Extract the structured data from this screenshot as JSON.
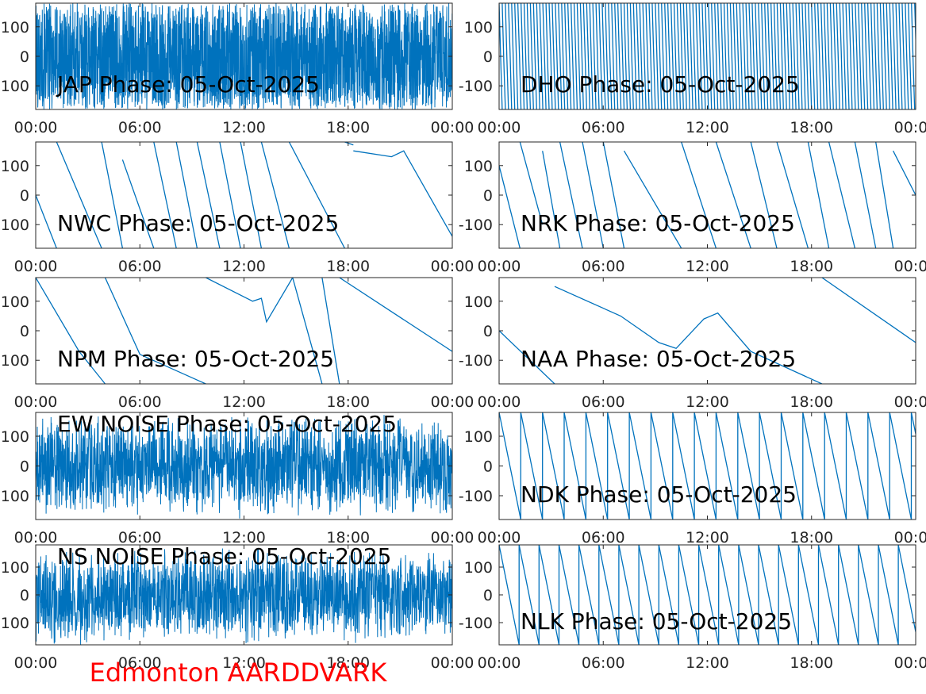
{
  "figure": {
    "footer": "Edmonton AARDDVARK",
    "footer_color": "#ff0000",
    "line_color": "#0072bd"
  },
  "chart_data": [
    {
      "type": "line",
      "title": "JAP Phase: 05-Oct-2025",
      "xticks": [
        "00:00",
        "06:00",
        "12:00",
        "18:00",
        "00:00"
      ],
      "yticks": [
        "100",
        "0",
        "-100"
      ],
      "xlim": [
        0,
        24
      ],
      "ylim": [
        -180,
        180
      ],
      "pattern": "noise-dense"
    },
    {
      "type": "line",
      "title": "DHO Phase: 05-Oct-2025",
      "xticks": [
        "00:00",
        "06:00",
        "12:00",
        "18:00",
        "00:00"
      ],
      "yticks": [
        "100",
        "0",
        "-100"
      ],
      "xlim": [
        0,
        24
      ],
      "ylim": [
        -180,
        180
      ],
      "pattern": "fast-wrap"
    },
    {
      "type": "line",
      "title": "NWC Phase: 05-Oct-2025",
      "xticks": [
        "00:00",
        "06:00",
        "12:00",
        "18:00",
        "00:00"
      ],
      "yticks": [
        "100",
        "0",
        "-100"
      ],
      "xlim": [
        0,
        24
      ],
      "ylim": [
        -180,
        180
      ],
      "pattern": "segments",
      "segments": [
        [
          [
            0,
            0
          ],
          [
            1.2,
            -180
          ]
        ],
        [
          [
            1.2,
            180
          ],
          [
            3.8,
            -180
          ]
        ],
        [
          [
            3.8,
            180
          ],
          [
            5.0,
            -180
          ]
        ],
        [
          [
            5.0,
            120
          ],
          [
            6.8,
            -180
          ]
        ],
        [
          [
            6.8,
            180
          ],
          [
            8.1,
            -180
          ]
        ],
        [
          [
            8.1,
            180
          ],
          [
            9.3,
            -180
          ]
        ],
        [
          [
            9.3,
            180
          ],
          [
            10.6,
            -180
          ]
        ],
        [
          [
            10.6,
            180
          ],
          [
            11.8,
            -180
          ]
        ],
        [
          [
            11.8,
            180
          ],
          [
            13.0,
            -180
          ]
        ],
        [
          [
            13.0,
            180
          ],
          [
            14.6,
            -180
          ]
        ],
        [
          [
            14.6,
            180
          ],
          [
            17.8,
            -180
          ]
        ],
        [
          [
            17.8,
            180
          ],
          [
            18.3,
            170
          ]
        ],
        [
          [
            18.3,
            150
          ],
          [
            20.5,
            130
          ],
          [
            21.2,
            150
          ],
          [
            24,
            -140
          ]
        ]
      ]
    },
    {
      "type": "line",
      "title": "NRK Phase: 05-Oct-2025",
      "xticks": [
        "00:00",
        "06:00",
        "12:00",
        "18:00",
        "00:00"
      ],
      "yticks": [
        "100",
        "0",
        "-100"
      ],
      "xlim": [
        0,
        24
      ],
      "ylim": [
        -180,
        180
      ],
      "pattern": "segments",
      "segments": [
        [
          [
            0,
            100
          ],
          [
            1.2,
            -180
          ]
        ],
        [
          [
            1.2,
            180
          ],
          [
            2.5,
            -100
          ]
        ],
        [
          [
            2.5,
            150
          ],
          [
            3.5,
            -180
          ]
        ],
        [
          [
            3.5,
            180
          ],
          [
            4.8,
            -180
          ]
        ],
        [
          [
            4.8,
            180
          ],
          [
            6.0,
            -180
          ]
        ],
        [
          [
            6.0,
            180
          ],
          [
            7.2,
            -180
          ]
        ],
        [
          [
            7.2,
            150
          ],
          [
            10.5,
            -180
          ]
        ],
        [
          [
            10.5,
            180
          ],
          [
            12.5,
            -180
          ]
        ],
        [
          [
            12.5,
            180
          ],
          [
            14.5,
            -180
          ]
        ],
        [
          [
            14.5,
            180
          ],
          [
            16.0,
            -180
          ]
        ],
        [
          [
            16.0,
            180
          ],
          [
            17.8,
            -180
          ]
        ],
        [
          [
            17.8,
            180
          ],
          [
            19.0,
            -180
          ]
        ],
        [
          [
            19.0,
            180
          ],
          [
            20.5,
            -180
          ]
        ],
        [
          [
            20.5,
            180
          ],
          [
            21.7,
            -180
          ]
        ],
        [
          [
            21.7,
            180
          ],
          [
            22.7,
            -180
          ]
        ],
        [
          [
            22.7,
            150
          ],
          [
            24,
            0
          ]
        ]
      ]
    },
    {
      "type": "line",
      "title": "NPM Phase: 05-Oct-2025",
      "xticks": [
        "00:00",
        "06:00",
        "12:00",
        "18:00",
        "00:00"
      ],
      "yticks": [
        "100",
        "0",
        "-100"
      ],
      "xlim": [
        0,
        24
      ],
      "ylim": [
        -180,
        180
      ],
      "pattern": "segments",
      "segments": [
        [
          [
            0,
            180
          ],
          [
            2.5,
            -70
          ],
          [
            4.0,
            -180
          ]
        ],
        [
          [
            4.0,
            180
          ],
          [
            6.0,
            -80
          ],
          [
            9.8,
            -180
          ]
        ],
        [
          [
            9.8,
            180
          ],
          [
            12.5,
            100
          ],
          [
            13.0,
            110
          ],
          [
            13.3,
            30
          ],
          [
            14.8,
            180
          ]
        ],
        [
          [
            14.8,
            180
          ],
          [
            16.5,
            -180
          ]
        ],
        [
          [
            16.5,
            180
          ],
          [
            17.5,
            -180
          ]
        ],
        [
          [
            17.5,
            180
          ],
          [
            24,
            -70
          ]
        ]
      ]
    },
    {
      "type": "line",
      "title": "NAA Phase: 05-Oct-2025",
      "xticks": [
        "00:00",
        "06:00",
        "12:00",
        "18:00",
        "00:00"
      ],
      "yticks": [
        "100",
        "0",
        "-100"
      ],
      "xlim": [
        0,
        24
      ],
      "ylim": [
        -180,
        180
      ],
      "pattern": "segments",
      "segments": [
        [
          [
            0,
            0
          ],
          [
            3.2,
            -180
          ]
        ],
        [
          [
            3.2,
            150
          ],
          [
            7.0,
            50
          ],
          [
            9.2,
            -40
          ],
          [
            10.2,
            -60
          ],
          [
            11.8,
            40
          ],
          [
            12.6,
            60
          ],
          [
            14.5,
            -70
          ],
          [
            18.6,
            -180
          ]
        ],
        [
          [
            18.6,
            180
          ],
          [
            24,
            -40
          ]
        ]
      ]
    },
    {
      "type": "line",
      "title": "EW NOISE Phase: 05-Oct-2025",
      "xticks": [
        "00:00",
        "06:00",
        "12:00",
        "18:00",
        "00:00"
      ],
      "yticks": [
        "100",
        "0",
        "-100"
      ],
      "xlim": [
        0,
        24
      ],
      "ylim": [
        -180,
        180
      ],
      "pattern": "noise-wide"
    },
    {
      "type": "line",
      "title": "NDK Phase: 05-Oct-2025",
      "xticks": [
        "00:00",
        "06:00",
        "12:00",
        "18:00",
        "00:00"
      ],
      "yticks": [
        "100",
        "0",
        "-100"
      ],
      "xlim": [
        0,
        24
      ],
      "ylim": [
        -180,
        180
      ],
      "pattern": "wrap",
      "period": 1.25,
      "start": 0
    },
    {
      "type": "line",
      "title": "NS NOISE Phase: 05-Oct-2025",
      "xticks": [
        "00:00",
        "06:00",
        "12:00",
        "18:00",
        "00:00"
      ],
      "yticks": [
        "100",
        "0",
        "-100"
      ],
      "xlim": [
        0,
        24
      ],
      "ylim": [
        -180,
        180
      ],
      "pattern": "noise-wide"
    },
    {
      "type": "line",
      "title": "NLK Phase: 05-Oct-2025",
      "xticks": [
        "00:00",
        "06:00",
        "12:00",
        "18:00",
        "00:00"
      ],
      "yticks": [
        "100",
        "0",
        "-100"
      ],
      "xlim": [
        0,
        24
      ],
      "ylim": [
        -180,
        180
      ],
      "pattern": "wrap",
      "period": 1.15,
      "start": 0
    }
  ]
}
